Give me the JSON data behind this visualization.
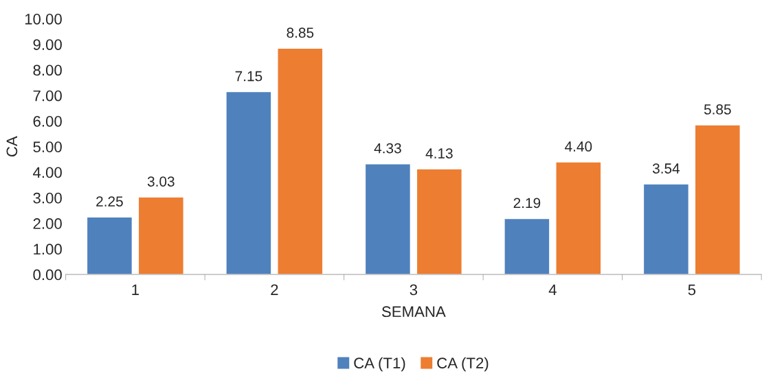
{
  "chart_data": {
    "type": "bar",
    "xlabel": "SEMANA",
    "ylabel": "CA",
    "categories": [
      "1",
      "2",
      "3",
      "4",
      "5"
    ],
    "series": [
      {
        "name": "CA (T1)",
        "color": "#4f81bd",
        "values": [
          2.25,
          7.15,
          4.33,
          2.19,
          3.54
        ],
        "value_labels": [
          "2.25",
          "7.15",
          "4.33",
          "2.19",
          "3.54"
        ]
      },
      {
        "name": "CA (T2)",
        "color": "#ed7d31",
        "values": [
          3.03,
          8.85,
          4.13,
          4.4,
          5.85
        ],
        "value_labels": [
          "3.03",
          "8.85",
          "4.13",
          "4.40",
          "5.85"
        ]
      }
    ],
    "ylim": [
      0,
      10
    ],
    "yticks": [
      {
        "value": 0,
        "label": "0.00"
      },
      {
        "value": 1,
        "label": "1.00"
      },
      {
        "value": 2,
        "label": "2.00"
      },
      {
        "value": 3,
        "label": "3.00"
      },
      {
        "value": 4,
        "label": "4.00"
      },
      {
        "value": 5,
        "label": "5.00"
      },
      {
        "value": 6,
        "label": "6.00"
      },
      {
        "value": 7,
        "label": "7.00"
      },
      {
        "value": 8,
        "label": "8.00"
      },
      {
        "value": 9,
        "label": "9.00"
      },
      {
        "value": 10,
        "label": "10.00"
      }
    ],
    "grid": false,
    "legend": "bottom"
  }
}
